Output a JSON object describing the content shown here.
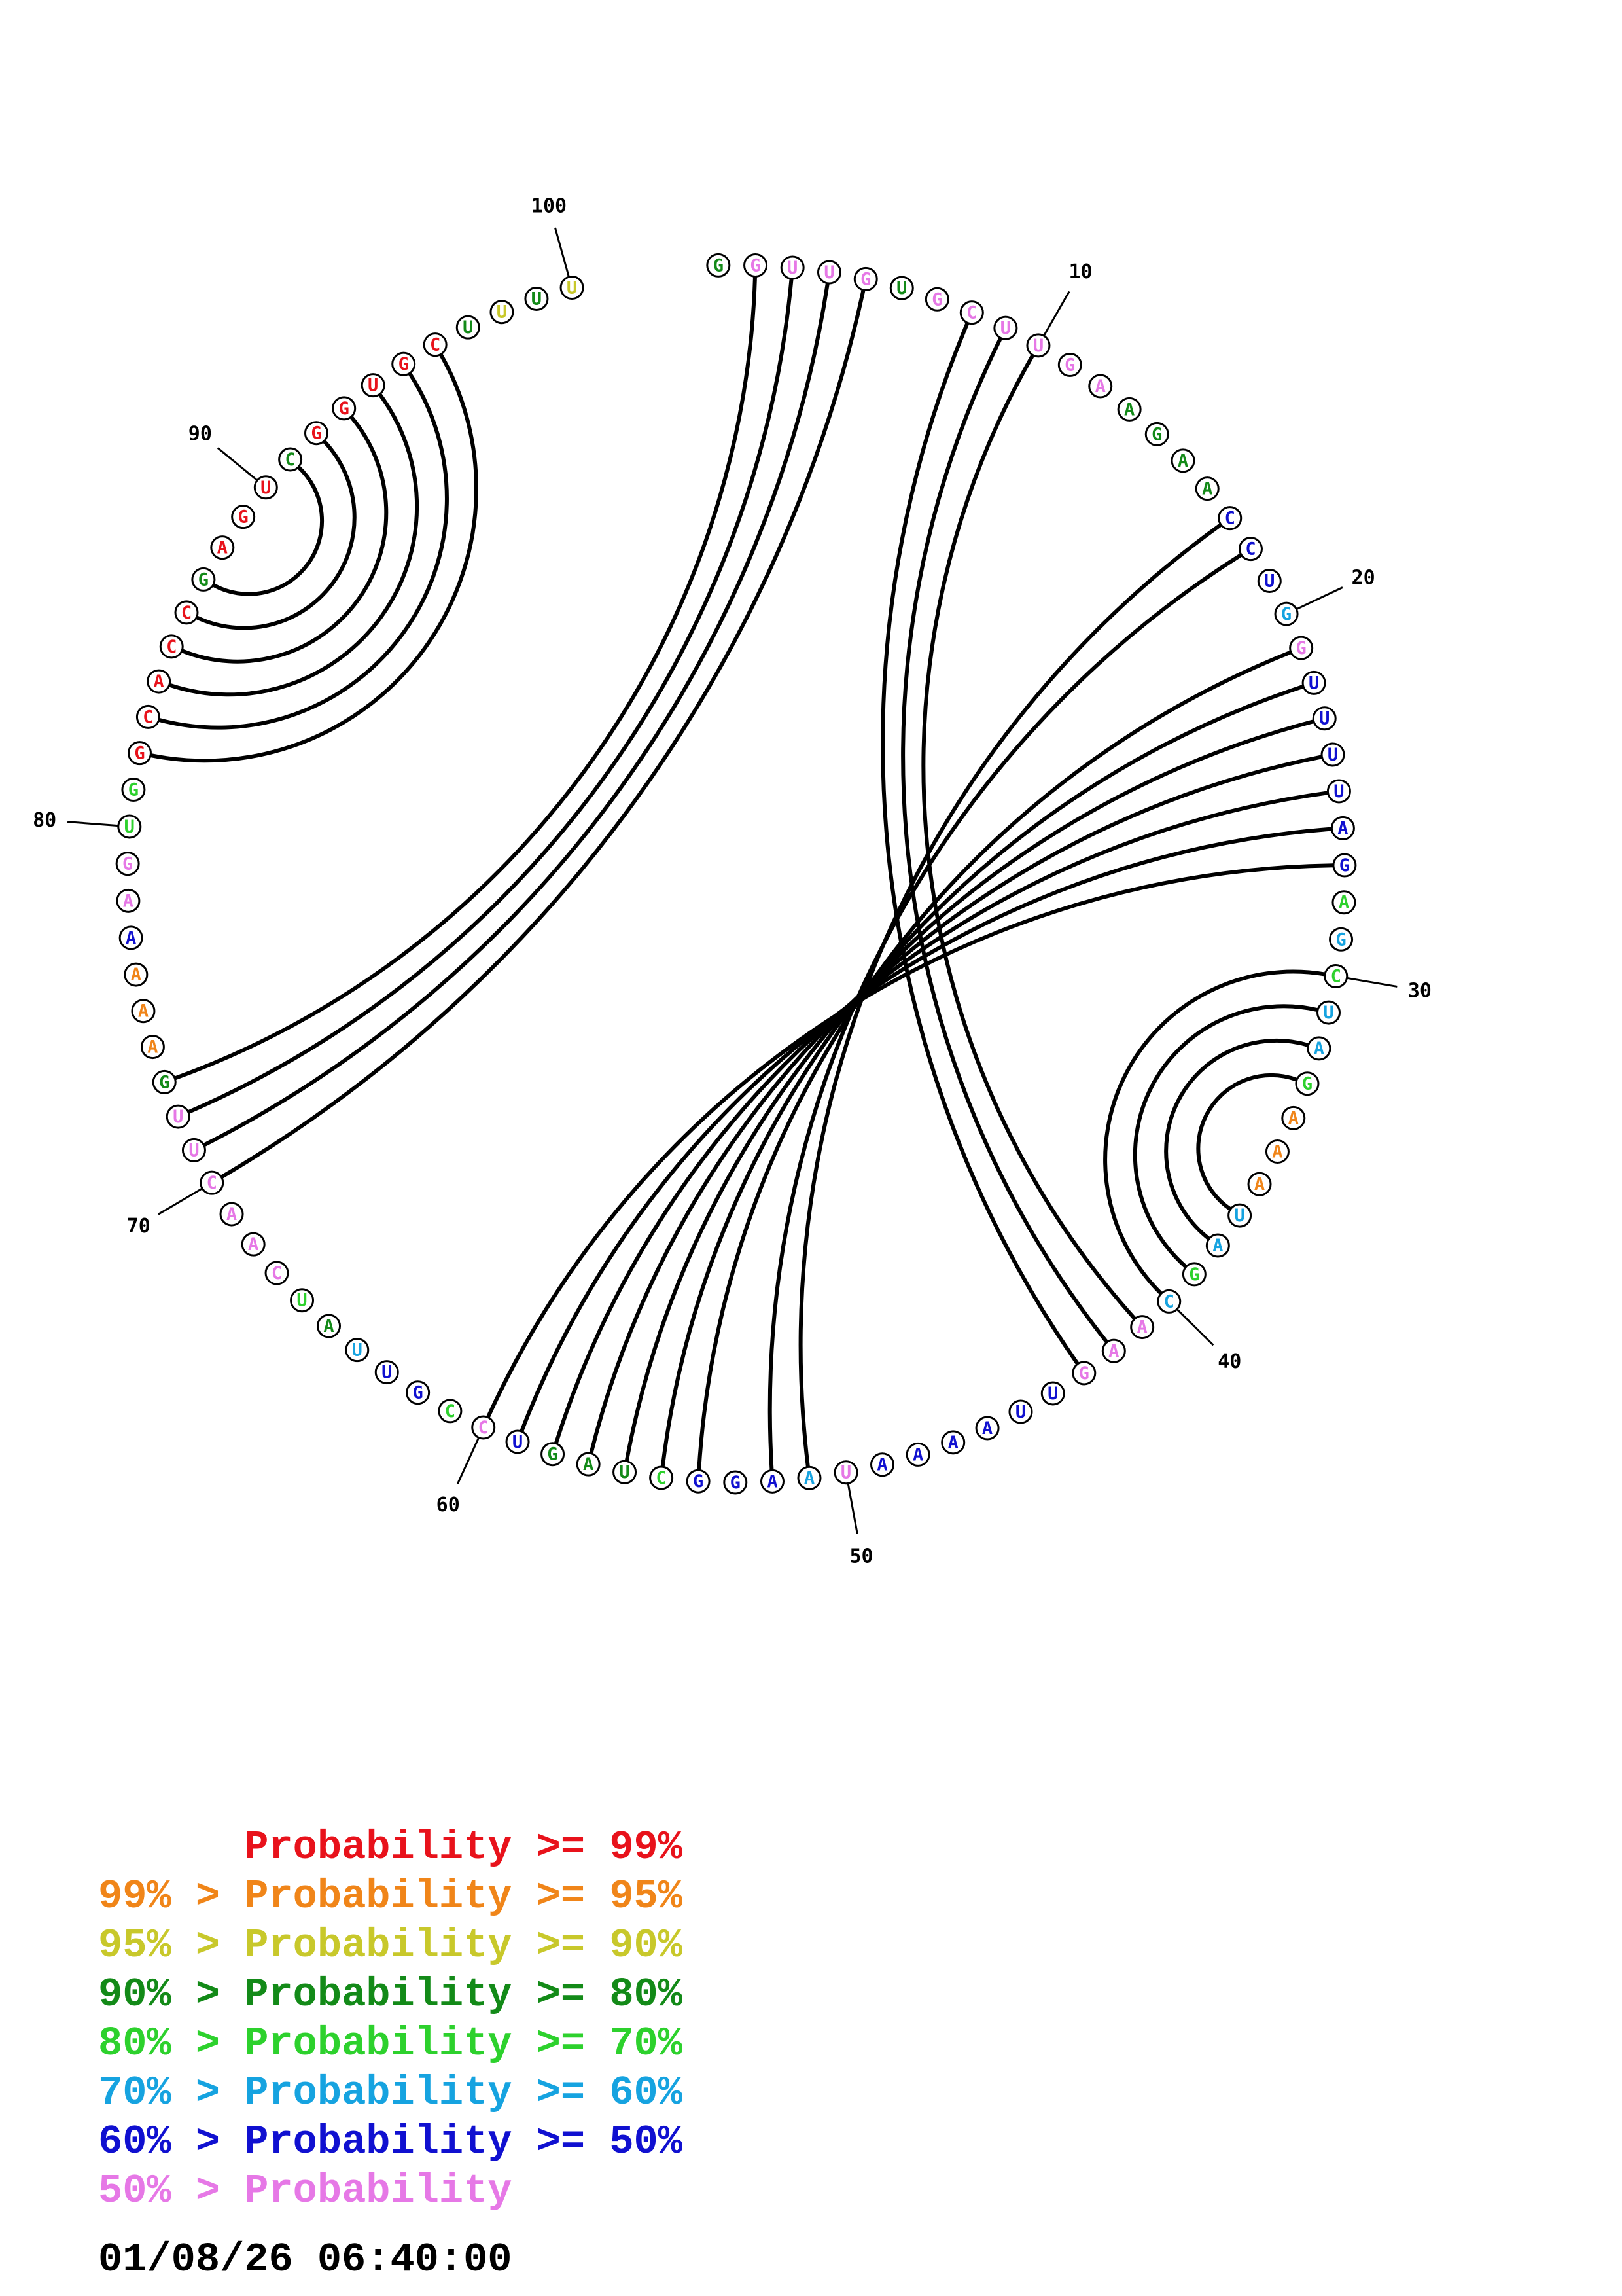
{
  "colors": {
    "red": "#e8121b",
    "orange": "#f08519",
    "yellow": "#c8c82b",
    "darkgreen": "#138a18",
    "green": "#2dd12d",
    "cyan": "#16a3e0",
    "blue": "#1010d0",
    "pink": "#e678e6",
    "arc": "#000000"
  },
  "sequence": [
    {
      "n": "G",
      "c": "darkgreen"
    },
    {
      "n": "G",
      "c": "pink"
    },
    {
      "n": "U",
      "c": "pink"
    },
    {
      "n": "U",
      "c": "pink"
    },
    {
      "n": "G",
      "c": "pink"
    },
    {
      "n": "U",
      "c": "darkgreen"
    },
    {
      "n": "G",
      "c": "pink"
    },
    {
      "n": "C",
      "c": "pink"
    },
    {
      "n": "U",
      "c": "pink"
    },
    {
      "n": "U",
      "c": "pink"
    },
    {
      "n": "G",
      "c": "pink"
    },
    {
      "n": "A",
      "c": "pink"
    },
    {
      "n": "A",
      "c": "darkgreen"
    },
    {
      "n": "G",
      "c": "darkgreen"
    },
    {
      "n": "A",
      "c": "darkgreen"
    },
    {
      "n": "A",
      "c": "darkgreen"
    },
    {
      "n": "C",
      "c": "blue"
    },
    {
      "n": "C",
      "c": "blue"
    },
    {
      "n": "U",
      "c": "blue"
    },
    {
      "n": "G",
      "c": "cyan"
    },
    {
      "n": "G",
      "c": "pink"
    },
    {
      "n": "U",
      "c": "blue"
    },
    {
      "n": "U",
      "c": "blue"
    },
    {
      "n": "U",
      "c": "blue"
    },
    {
      "n": "U",
      "c": "blue"
    },
    {
      "n": "A",
      "c": "blue"
    },
    {
      "n": "G",
      "c": "blue"
    },
    {
      "n": "A",
      "c": "green"
    },
    {
      "n": "G",
      "c": "cyan"
    },
    {
      "n": "C",
      "c": "green"
    },
    {
      "n": "U",
      "c": "cyan"
    },
    {
      "n": "A",
      "c": "cyan"
    },
    {
      "n": "G",
      "c": "green"
    },
    {
      "n": "A",
      "c": "orange"
    },
    {
      "n": "A",
      "c": "orange"
    },
    {
      "n": "A",
      "c": "orange"
    },
    {
      "n": "U",
      "c": "cyan"
    },
    {
      "n": "A",
      "c": "cyan"
    },
    {
      "n": "G",
      "c": "green"
    },
    {
      "n": "C",
      "c": "cyan"
    },
    {
      "n": "A",
      "c": "pink"
    },
    {
      "n": "A",
      "c": "pink"
    },
    {
      "n": "G",
      "c": "pink"
    },
    {
      "n": "U",
      "c": "blue"
    },
    {
      "n": "U",
      "c": "blue"
    },
    {
      "n": "A",
      "c": "blue"
    },
    {
      "n": "A",
      "c": "blue"
    },
    {
      "n": "A",
      "c": "blue"
    },
    {
      "n": "A",
      "c": "blue"
    },
    {
      "n": "U",
      "c": "pink"
    },
    {
      "n": "A",
      "c": "cyan"
    },
    {
      "n": "A",
      "c": "blue"
    },
    {
      "n": "G",
      "c": "blue"
    },
    {
      "n": "G",
      "c": "blue"
    },
    {
      "n": "C",
      "c": "green"
    },
    {
      "n": "U",
      "c": "darkgreen"
    },
    {
      "n": "A",
      "c": "darkgreen"
    },
    {
      "n": "G",
      "c": "darkgreen"
    },
    {
      "n": "U",
      "c": "blue"
    },
    {
      "n": "C",
      "c": "pink"
    },
    {
      "n": "C",
      "c": "green"
    },
    {
      "n": "G",
      "c": "blue"
    },
    {
      "n": "U",
      "c": "blue"
    },
    {
      "n": "U",
      "c": "cyan"
    },
    {
      "n": "A",
      "c": "darkgreen"
    },
    {
      "n": "U",
      "c": "green"
    },
    {
      "n": "C",
      "c": "pink"
    },
    {
      "n": "A",
      "c": "pink"
    },
    {
      "n": "A",
      "c": "pink"
    },
    {
      "n": "C",
      "c": "pink"
    },
    {
      "n": "U",
      "c": "pink"
    },
    {
      "n": "U",
      "c": "pink"
    },
    {
      "n": "G",
      "c": "darkgreen"
    },
    {
      "n": "A",
      "c": "orange"
    },
    {
      "n": "A",
      "c": "orange"
    },
    {
      "n": "A",
      "c": "orange"
    },
    {
      "n": "A",
      "c": "blue"
    },
    {
      "n": "A",
      "c": "pink"
    },
    {
      "n": "G",
      "c": "pink"
    },
    {
      "n": "U",
      "c": "green"
    },
    {
      "n": "G",
      "c": "green"
    },
    {
      "n": "G",
      "c": "red"
    },
    {
      "n": "C",
      "c": "red"
    },
    {
      "n": "A",
      "c": "red"
    },
    {
      "n": "C",
      "c": "red"
    },
    {
      "n": "C",
      "c": "red"
    },
    {
      "n": "G",
      "c": "darkgreen"
    },
    {
      "n": "A",
      "c": "red"
    },
    {
      "n": "G",
      "c": "red"
    },
    {
      "n": "U",
      "c": "red"
    },
    {
      "n": "C",
      "c": "darkgreen"
    },
    {
      "n": "G",
      "c": "red"
    },
    {
      "n": "G",
      "c": "red"
    },
    {
      "n": "U",
      "c": "red"
    },
    {
      "n": "G",
      "c": "red"
    },
    {
      "n": "C",
      "c": "red"
    },
    {
      "n": "U",
      "c": "darkgreen"
    },
    {
      "n": "U",
      "c": "yellow"
    },
    {
      "n": "U",
      "c": "darkgreen"
    },
    {
      "n": "U",
      "c": "yellow"
    }
  ],
  "index_labels": [
    {
      "i": 10,
      "label": "10"
    },
    {
      "i": 20,
      "label": "20"
    },
    {
      "i": 30,
      "label": "30"
    },
    {
      "i": 40,
      "label": "40"
    },
    {
      "i": 50,
      "label": "50"
    },
    {
      "i": 60,
      "label": "60"
    },
    {
      "i": 70,
      "label": "70"
    },
    {
      "i": 80,
      "label": "80"
    },
    {
      "i": 90,
      "label": "90"
    },
    {
      "i": 100,
      "label": "100"
    }
  ],
  "pairs": [
    [
      2,
      73
    ],
    [
      3,
      72
    ],
    [
      4,
      71
    ],
    [
      5,
      70
    ],
    [
      8,
      43
    ],
    [
      9,
      42
    ],
    [
      10,
      41
    ],
    [
      17,
      51
    ],
    [
      18,
      52
    ],
    [
      21,
      54
    ],
    [
      22,
      55
    ],
    [
      23,
      56
    ],
    [
      24,
      57
    ],
    [
      25,
      58
    ],
    [
      26,
      59
    ],
    [
      27,
      60
    ],
    [
      30,
      40
    ],
    [
      31,
      39
    ],
    [
      32,
      38
    ],
    [
      33,
      37
    ],
    [
      82,
      96
    ],
    [
      83,
      95
    ],
    [
      84,
      94
    ],
    [
      85,
      93
    ],
    [
      86,
      92
    ],
    [
      87,
      91
    ]
  ],
  "legend": [
    {
      "prefix": "    ",
      "text": "Probability >= 99%",
      "color": "red"
    },
    {
      "prefix": "99% > ",
      "text": "Probability >= 95%",
      "color": "orange"
    },
    {
      "prefix": "95% > ",
      "text": "Probability >= 90%",
      "color": "yellow"
    },
    {
      "prefix": "90% > ",
      "text": "Probability >= 80%",
      "color": "darkgreen"
    },
    {
      "prefix": "80% > ",
      "text": "Probability >= 70%",
      "color": "green"
    },
    {
      "prefix": "70% > ",
      "text": "Probability >= 60%",
      "color": "cyan"
    },
    {
      "prefix": "60% > ",
      "text": "Probability >= 50%",
      "color": "blue"
    },
    {
      "prefix": "50% > ",
      "text": "Probability",
      "color": "pink"
    }
  ],
  "timestamp": "01/08/26 06:40:00"
}
